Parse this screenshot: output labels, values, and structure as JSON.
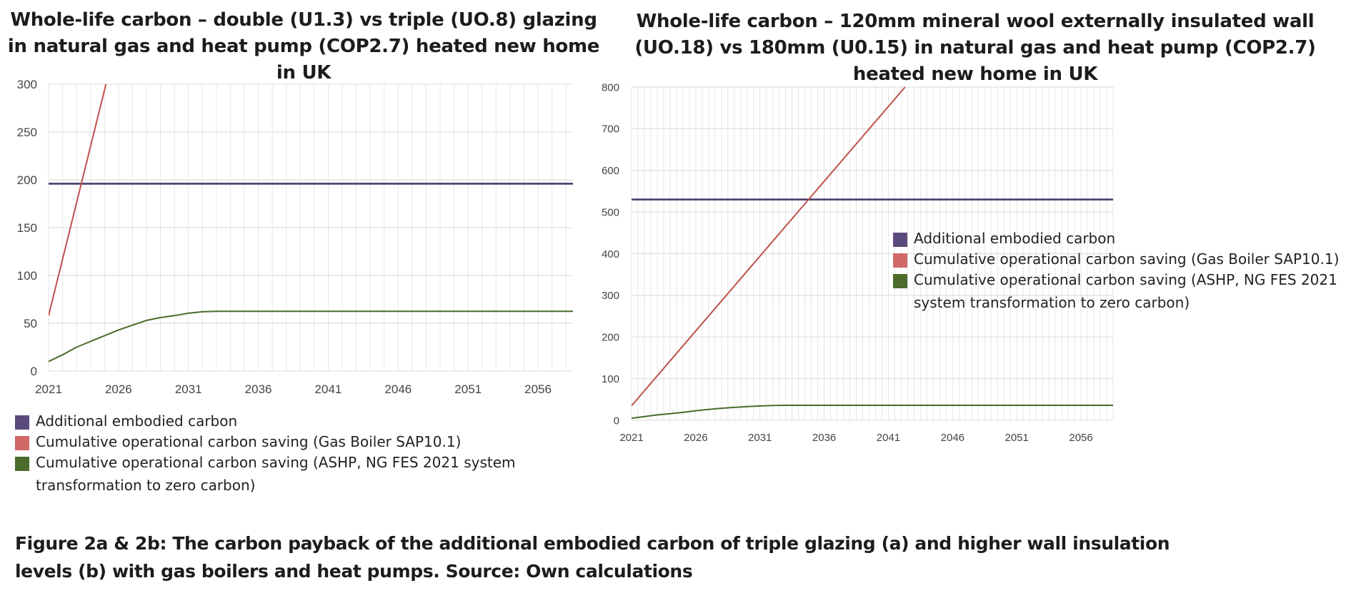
{
  "chart_data": [
    {
      "type": "line",
      "title": "Whole-life carbon – double (U1.3) vs triple (UO.8) glazing in natural gas and heat pump (COP2.7) heated new home in UK",
      "xlabel": "",
      "ylabel": "",
      "x_ticks": [
        "2021",
        "2026",
        "2031",
        "2036",
        "2041",
        "2046",
        "2051",
        "2056"
      ],
      "xlim": [
        2021,
        2058.5
      ],
      "y_ticks": [
        "0",
        "50",
        "100",
        "150",
        "200",
        "250",
        "300"
      ],
      "ylim": [
        0,
        300
      ],
      "grid": true,
      "legend_position": "bottom",
      "series": [
        {
          "name": "Additional embodied carbon",
          "color": "#4b3a6b",
          "swatch_color": "#5b4a7c",
          "x": [
            2021,
            2058.5
          ],
          "y": [
            196,
            196
          ]
        },
        {
          "name": "Cumulative operational carbon saving (Gas Boiler SAP10.1)",
          "color": "#c0504d",
          "swatch_color": "#d06866",
          "x": [
            2021,
            2025.1
          ],
          "y": [
            58,
            300
          ]
        },
        {
          "name": "Cumulative operational carbon saving (ASHP, NG FES 2021 system transformation to zero carbon)",
          "color": "#4a6b2a",
          "swatch_color": "#4a6b2a",
          "x": [
            2021,
            2022,
            2023,
            2024,
            2025,
            2026,
            2027,
            2028,
            2029,
            2030,
            2031,
            2032,
            2033,
            2034,
            2040,
            2050,
            2058.5
          ],
          "y": [
            10,
            17,
            25,
            31,
            37,
            43,
            48,
            53,
            56,
            58,
            60.5,
            62,
            62.5,
            62.5,
            62.5,
            62.5,
            62.5
          ]
        }
      ]
    },
    {
      "type": "line",
      "title": "Whole-life carbon – 120mm mineral wool externally insulated wall (UO.18) vs 180mm (U0.15) in natural gas and heat pump (COP2.7) heated new home in UK",
      "xlabel": "",
      "ylabel": "",
      "x_ticks": [
        "2021",
        "2026",
        "2031",
        "2036",
        "2041",
        "2046",
        "2051",
        "2056"
      ],
      "xlim": [
        2021,
        2058.5
      ],
      "y_ticks": [
        "0",
        "100",
        "200",
        "300",
        "400",
        "500",
        "600",
        "700",
        "800"
      ],
      "ylim": [
        0,
        800
      ],
      "grid": true,
      "legend_position": "right",
      "series": [
        {
          "name": "Additional embodied carbon",
          "color": "#4b3a6b",
          "swatch_color": "#5b4a7c",
          "x": [
            2021,
            2058.5
          ],
          "y": [
            530,
            530
          ]
        },
        {
          "name": "Cumulative operational carbon saving (Gas Boiler SAP10.1)",
          "color": "#c0504d",
          "swatch_color": "#d06866",
          "x": [
            2021,
            2042.3
          ],
          "y": [
            35,
            800
          ]
        },
        {
          "name": "Cumulative operational carbon saving (ASHP, NG FES 2021 system transformation to zero carbon)",
          "color": "#4a6b2a",
          "swatch_color": "#4a6b2a",
          "x": [
            2021,
            2022,
            2023,
            2024,
            2025,
            2026,
            2027,
            2028,
            2029,
            2030,
            2031,
            2032,
            2033,
            2040,
            2050,
            2058.5
          ],
          "y": [
            5,
            9,
            13,
            16,
            19,
            23,
            26,
            29,
            31,
            33,
            34.5,
            35.5,
            36,
            36,
            36,
            36
          ]
        }
      ]
    }
  ],
  "legend_a": {
    "items": [
      "Additional embodied carbon",
      "Cumulative operational carbon saving (Gas Boiler SAP10.1)",
      "Cumulative operational carbon saving (ASHP, NG FES 2021 system transformation to zero carbon)"
    ]
  },
  "legend_b": {
    "items": [
      "Additional embodied carbon",
      "Cumulative operational carbon saving (Gas Boiler SAP10.1)",
      "Cumulative operational carbon saving (ASHP, NG FES 2021 system transformation to zero carbon)"
    ]
  },
  "caption": "Figure 2a & 2b: The carbon payback of the additional embodied carbon of triple glazing (a) and higher wall insulation levels (b) with gas boilers and heat pumps. Source: Own calculations"
}
